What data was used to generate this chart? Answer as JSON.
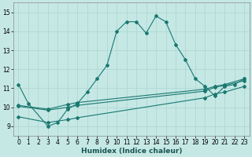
{
  "xlabel": "Humidex (Indice chaleur)",
  "xlim": [
    -0.5,
    23.5
  ],
  "ylim": [
    8.5,
    15.5
  ],
  "yticks": [
    9,
    10,
    11,
    12,
    13,
    14,
    15
  ],
  "xticks": [
    0,
    1,
    2,
    3,
    4,
    5,
    6,
    7,
    8,
    9,
    10,
    11,
    12,
    13,
    14,
    15,
    16,
    17,
    18,
    19,
    20,
    21,
    22,
    23
  ],
  "bg_color": "#c5e8e5",
  "grid_color": "#aad4d0",
  "line_color": "#1a7870",
  "lines": [
    {
      "x": [
        0,
        1,
        3,
        4,
        5,
        6,
        7,
        8,
        9,
        10,
        11,
        12,
        13,
        14,
        15,
        16,
        17,
        18,
        19,
        20,
        21,
        22,
        23
      ],
      "y": [
        11.2,
        10.2,
        9.0,
        9.2,
        9.9,
        10.2,
        10.8,
        11.5,
        12.2,
        14.0,
        14.5,
        14.5,
        13.9,
        14.8,
        14.5,
        13.3,
        12.5,
        11.5,
        11.1,
        10.6,
        11.1,
        11.2,
        11.5
      ],
      "marker": "D",
      "markersize": 2.0,
      "linewidth": 0.8,
      "linestyle": "-"
    },
    {
      "x": [
        0,
        3,
        5,
        6,
        19,
        20,
        21,
        23
      ],
      "y": [
        10.05,
        9.85,
        10.0,
        10.1,
        10.85,
        11.05,
        11.15,
        11.4
      ],
      "marker": "D",
      "markersize": 2.0,
      "linewidth": 0.8,
      "linestyle": "-"
    },
    {
      "x": [
        0,
        3,
        5,
        6,
        19,
        20,
        21,
        23
      ],
      "y": [
        10.1,
        9.9,
        10.15,
        10.25,
        10.95,
        11.1,
        11.2,
        11.5
      ],
      "marker": "D",
      "markersize": 2.0,
      "linewidth": 0.8,
      "linestyle": "-"
    },
    {
      "x": [
        0,
        3,
        5,
        6,
        19,
        20,
        21,
        23
      ],
      "y": [
        9.5,
        9.2,
        9.35,
        9.45,
        10.5,
        10.7,
        10.8,
        11.1
      ],
      "marker": "D",
      "markersize": 2.0,
      "linewidth": 0.8,
      "linestyle": "-"
    }
  ]
}
